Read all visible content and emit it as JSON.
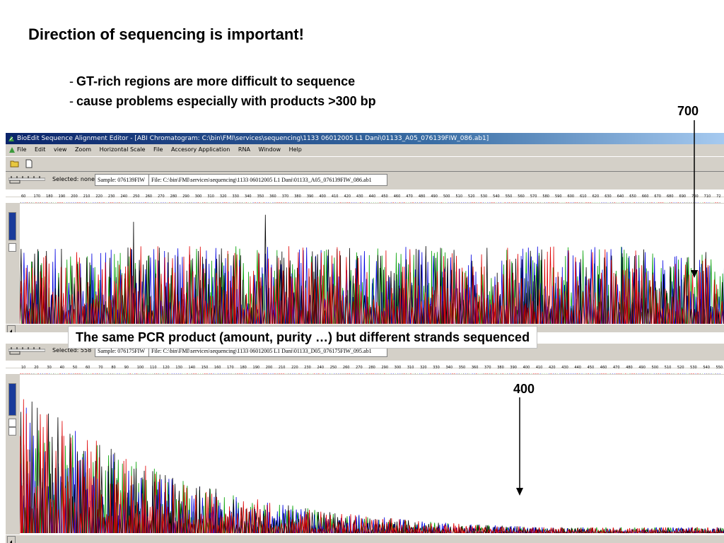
{
  "slide": {
    "title": "Direction of sequencing is important!",
    "bullets": [
      {
        "dash": "-",
        "text": "GT-rich regions are more difficult to sequence"
      },
      {
        "dash": "-",
        "text": "cause problems especially with products >300 bp"
      }
    ],
    "caption": "The same PCR product (amount, purity …) but different strands sequenced",
    "annotation_top": "700",
    "annotation_bottom": "400"
  },
  "window_top": {
    "title": "BioEdit Sequence Alignment Editor - [ABI Chromatogram: C:\\bin\\FMI\\services\\sequencing\\1133 06012005 L1 Dani\\01133_A05_076139FIW_086.ab1]",
    "menu": [
      "File",
      "Edit",
      "view",
      "Zoom",
      "Horizontal Scale",
      "File",
      "Accesory Application",
      "RNA",
      "Window",
      "Help"
    ],
    "selected": "Selected: none",
    "sample": "Sample: 076139FIW",
    "file": "File: C:\\bin\\FMI\\services\\sequencing\\1133 06012005 L1 Dani\\01133_A05_076139FIW_086.ab1",
    "ruler_labels": [
      "60",
      "170",
      "180",
      "190",
      "200",
      "210",
      "220",
      "230",
      "240",
      "250",
      "260",
      "270",
      "280",
      "290",
      "300",
      "310",
      "320",
      "330",
      "340",
      "350",
      "360",
      "370",
      "380",
      "390",
      "400",
      "410",
      "420",
      "430",
      "440",
      "450",
      "460",
      "470",
      "480",
      "490",
      "500",
      "510",
      "520",
      "530",
      "540",
      "550",
      "560",
      "570",
      "580",
      "590",
      "600",
      "610",
      "620",
      "630",
      "640",
      "650",
      "660",
      "670",
      "680",
      "690",
      "700",
      "710",
      "72"
    ]
  },
  "window_bottom": {
    "selected": "Selected: 558",
    "sample": "Sample: 076175FIW",
    "file": "File: C:\\bin\\FMI\\services\\sequencing\\1133 06012005 L1 Dani\\01133_D05_076175FIW_095.ab1",
    "ruler_labels": [
      "10",
      "20",
      "30",
      "40",
      "50",
      "60",
      "70",
      "80",
      "90",
      "100",
      "110",
      "120",
      "130",
      "140",
      "150",
      "160",
      "170",
      "180",
      "190",
      "200",
      "210",
      "220",
      "230",
      "240",
      "250",
      "260",
      "270",
      "280",
      "290",
      "300",
      "310",
      "320",
      "330",
      "340",
      "350",
      "360",
      "370",
      "380",
      "390",
      "400",
      "410",
      "420",
      "430",
      "440",
      "450",
      "460",
      "470",
      "480",
      "490",
      "500",
      "510",
      "520",
      "530",
      "540",
      "550"
    ]
  },
  "colors": {
    "A": "#00a000",
    "C": "#0000e0",
    "G": "#000000",
    "T": "#e00000"
  }
}
